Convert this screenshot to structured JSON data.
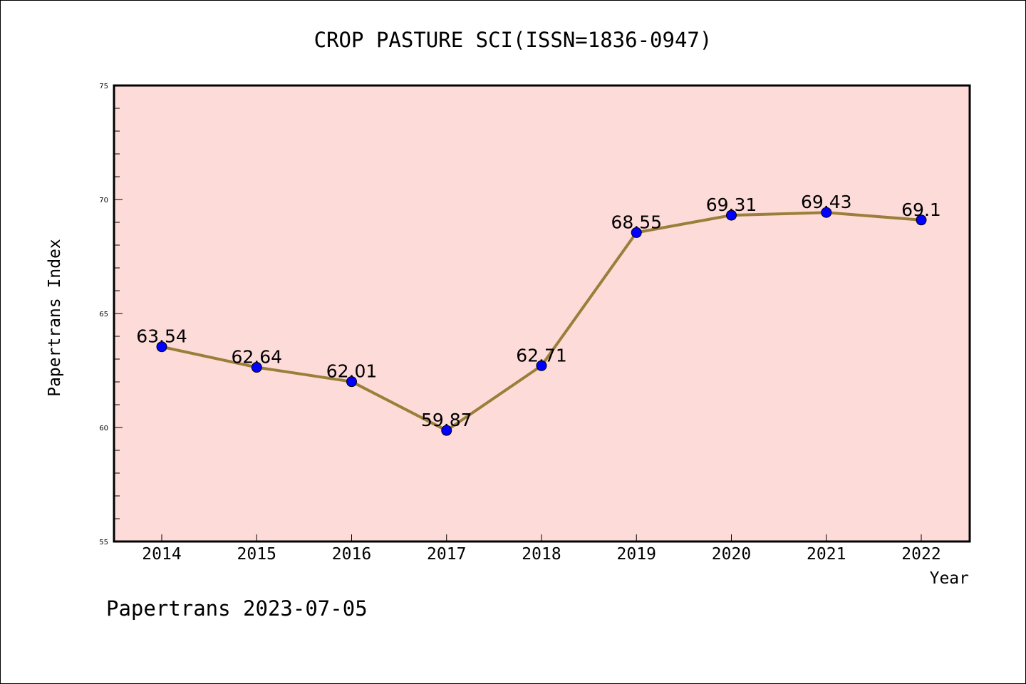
{
  "chart_data": {
    "type": "line",
    "title": "CROP PASTURE SCI(ISSN=1836-0947)",
    "xlabel": "Year",
    "ylabel": "Papertrans Index",
    "categories": [
      "2014",
      "2015",
      "2016",
      "2017",
      "2018",
      "2019",
      "2020",
      "2021",
      "2022"
    ],
    "series": [
      {
        "values": [
          63.54,
          62.64,
          62.01,
          59.87,
          62.71,
          68.55,
          69.31,
          69.43,
          69.1
        ],
        "labels": [
          "63.54",
          "62.64",
          "62.01",
          "59.87",
          "62.71",
          "68.55",
          "69.31",
          "69.43",
          "69.1"
        ]
      }
    ],
    "ylim": [
      55,
      75
    ],
    "yticks": [
      "55",
      "60",
      "65",
      "70",
      "75"
    ],
    "grid": false,
    "legend": "none"
  },
  "footer": {
    "watermark": "Papertrans 2023-07-05"
  },
  "colors": {
    "plot_background": "#fddbd8",
    "line": "#9a7f3a",
    "marker": "#0000ff",
    "axis": "#000000"
  }
}
